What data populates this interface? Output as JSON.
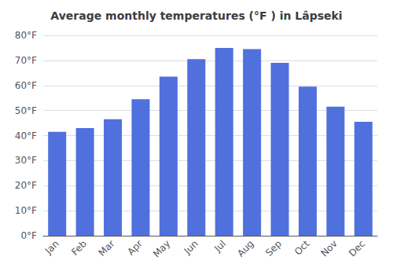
{
  "chart_data": {
    "type": "bar",
    "title": "Average monthly temperatures (°F ) in Lâpseki",
    "categories": [
      "Jan",
      "Feb",
      "Mar",
      "Apr",
      "May",
      "Jun",
      "Jul",
      "Aug",
      "Sep",
      "Oct",
      "Nov",
      "Dec"
    ],
    "values": [
      41.5,
      43.0,
      46.5,
      54.5,
      63.5,
      70.5,
      75.0,
      74.5,
      69.0,
      59.5,
      51.5,
      45.5
    ],
    "ylim": [
      0,
      80
    ],
    "yticks": [
      {
        "value": 0,
        "label": "0°F"
      },
      {
        "value": 10,
        "label": "10°F"
      },
      {
        "value": 20,
        "label": "20°F"
      },
      {
        "value": 30,
        "label": "30°F"
      },
      {
        "value": 40,
        "label": "40°F"
      },
      {
        "value": 50,
        "label": "50°F"
      },
      {
        "value": 60,
        "label": "60°F"
      },
      {
        "value": 70,
        "label": "70°F"
      },
      {
        "value": 80,
        "label": "80°F"
      }
    ],
    "grid": true
  }
}
